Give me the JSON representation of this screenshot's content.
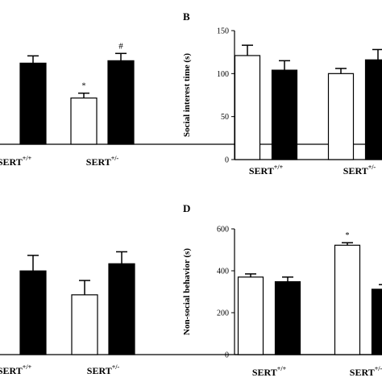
{
  "chart_data": [
    {
      "panel": "",
      "type": "bar",
      "categories": [
        {
          "base": "SERT",
          "sup": "+/+"
        },
        {
          "base": "SERT",
          "sup": "+/-"
        }
      ],
      "series": [
        {
          "color": "#ffffff",
          "values": [
            null,
            57
          ],
          "errors": [
            null,
            6
          ],
          "sig": [
            null,
            "*"
          ]
        },
        {
          "color": "#000000",
          "values": [
            100,
            103
          ],
          "errors": [
            9,
            9
          ],
          "sig": [
            null,
            "#"
          ]
        }
      ],
      "ylabel": "",
      "ylim": [
        0,
        160
      ],
      "yticks": [],
      "grid": false
    },
    {
      "panel": "B",
      "type": "bar",
      "categories": [
        {
          "base": "SERT",
          "sup": "+/+"
        },
        {
          "base": "SERT",
          "sup": "+/-"
        }
      ],
      "series": [
        {
          "color": "#ffffff",
          "values": [
            121,
            100
          ],
          "errors": [
            12,
            6
          ],
          "sig": [
            null,
            null
          ]
        },
        {
          "color": "#000000",
          "values": [
            104,
            116
          ],
          "errors": [
            11,
            12
          ],
          "sig": [
            null,
            null
          ]
        }
      ],
      "ylabel": "Social interest time (s)",
      "ylim": [
        0,
        150
      ],
      "yticks": [
        "0",
        "50",
        "100",
        "150"
      ],
      "grid": false
    },
    {
      "panel": "",
      "type": "bar",
      "categories": [
        {
          "base": "SERT",
          "sup": "+/+"
        },
        {
          "base": "SERT",
          "sup": "+/-"
        }
      ],
      "series": [
        {
          "color": "#ffffff",
          "values": [
            null,
            50
          ],
          "errors": [
            null,
            12
          ],
          "sig": [
            null,
            null
          ]
        },
        {
          "color": "#000000",
          "values": [
            70,
            76
          ],
          "errors": [
            13,
            10
          ],
          "sig": [
            null,
            null
          ]
        }
      ],
      "ylabel": "",
      "ylim": [
        0,
        120
      ],
      "yticks": [],
      "grid": false
    },
    {
      "panel": "D",
      "type": "bar",
      "categories": [
        {
          "base": "SERT",
          "sup": "+/+"
        },
        {
          "base": "SERT",
          "sup": "+/-"
        }
      ],
      "series": [
        {
          "color": "#ffffff",
          "values": [
            370,
            522
          ],
          "errors": [
            15,
            12
          ],
          "sig": [
            null,
            "*"
          ]
        },
        {
          "color": "#000000",
          "values": [
            348,
            312
          ],
          "errors": [
            22,
            22
          ],
          "sig": [
            null,
            "#"
          ]
        }
      ],
      "ylabel": "Non-social behavior (s)",
      "ylim": [
        0,
        600
      ],
      "yticks": [
        "0",
        "200",
        "400",
        "600"
      ],
      "grid": false
    }
  ]
}
